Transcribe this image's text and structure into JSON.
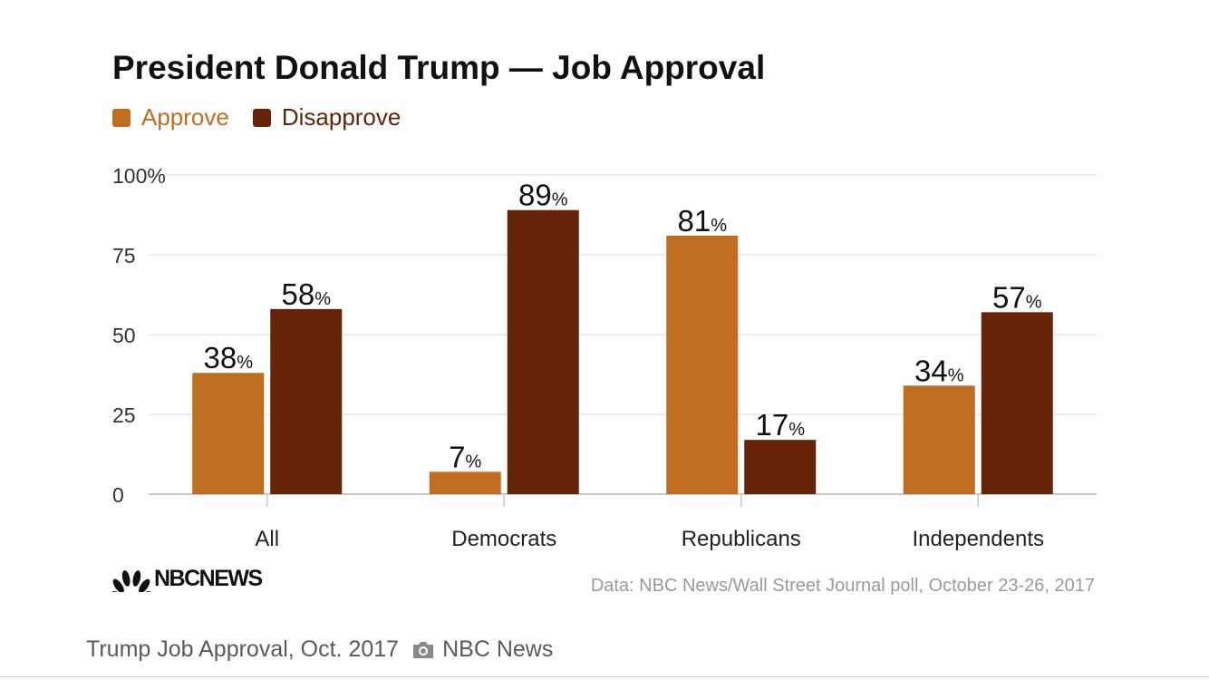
{
  "chart_data": {
    "type": "bar",
    "title": "President Donald Trump — Job Approval",
    "categories": [
      "All",
      "Democrats",
      "Republicans",
      "Independents"
    ],
    "series": [
      {
        "name": "Approve",
        "values": [
          38,
          7,
          81,
          34
        ],
        "color": "#c06d21"
      },
      {
        "name": "Disapprove",
        "values": [
          58,
          89,
          17,
          57
        ],
        "color": "#652407"
      }
    ],
    "yticks": [
      "0",
      "25",
      "50",
      "75",
      "100%"
    ],
    "ytick_values": [
      0,
      25,
      50,
      75,
      100
    ],
    "ylim": [
      0,
      100
    ],
    "value_suffix": "%",
    "xlabel": "",
    "ylabel": "",
    "legend_position": "top-left",
    "grid": true
  },
  "branding": {
    "logo_text": "NBCNEWS"
  },
  "source_note": "Data: NBC News/Wall Street Journal poll, October 23-26, 2017",
  "caption": {
    "title": "Trump Job Approval, Oct. 2017",
    "credit": "NBC News"
  }
}
